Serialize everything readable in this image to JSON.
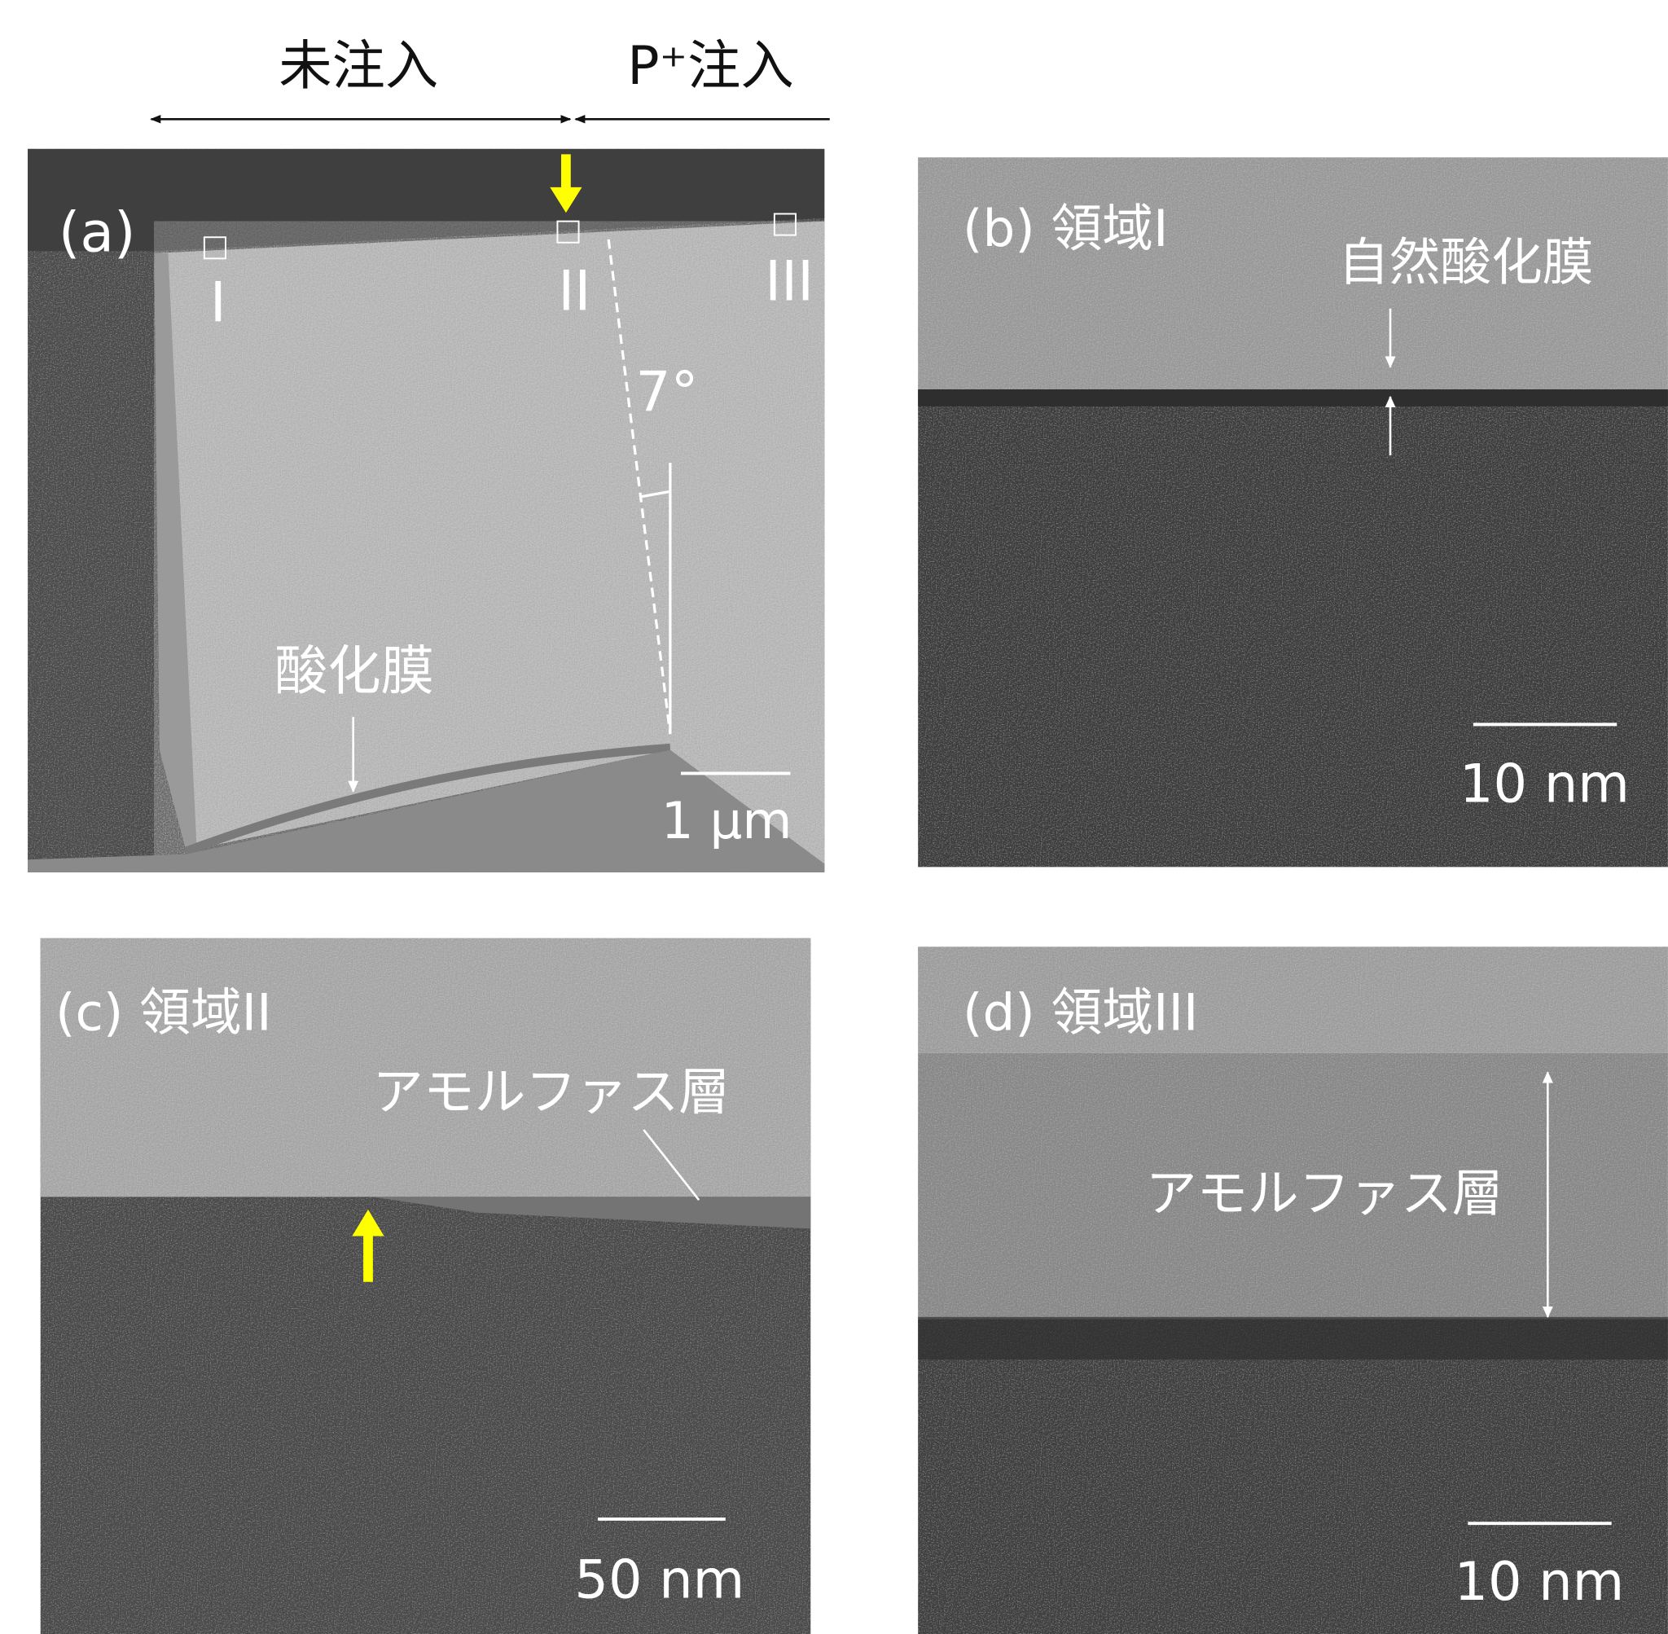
{
  "header": {
    "unimplanted": "未注入",
    "implanted": "P⁺注入"
  },
  "panel_a": {
    "label": "(a)",
    "regions": [
      "I",
      "II",
      "III"
    ],
    "angle": "7°",
    "oxide": "酸化膜",
    "scale": "1 μm"
  },
  "panel_b": {
    "label": "(b) 領域I",
    "annotation": "自然酸化膜",
    "scale": "10 nm"
  },
  "panel_c": {
    "label": "(c) 領域II",
    "annotation": "アモルファス層",
    "scale": "50 nm"
  },
  "panel_d": {
    "label": "(d) 領域III",
    "annotation": "アモルファス層",
    "scale": "10 nm"
  }
}
